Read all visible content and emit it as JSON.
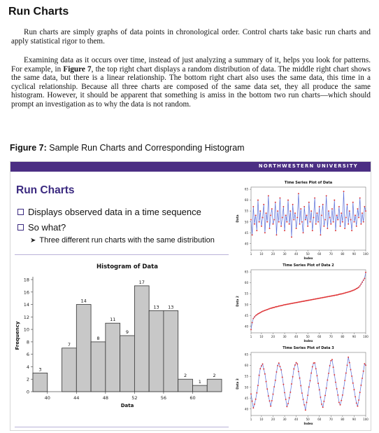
{
  "document": {
    "title": "Run Charts",
    "paragraph1": "Run charts are simply graphs of data points in chronological order. Control charts take basic run charts and apply statistical rigor to them.",
    "paragraph2_before": "Examining data as it occurs over time, instead of just analyzing a summary of it, helps you look for patterns. For example, in ",
    "paragraph2_figref": "Figure 7",
    "paragraph2_after": ", the top right chart displays a random distribution of data. The middle right chart shows the same data, but there is a linear relationship. The bottom right chart also uses the same data, this time in a cyclical relationship. Because all three charts are composed of the same data set, they all produce the same histogram. However, it should be apparent that something is amiss in the bottom two run charts—which should prompt an investigation as to why the data is not random.",
    "figure_caption_bold": "Figure 7:",
    "figure_caption_text": " Sample Run Charts and Corresponding Histogram"
  },
  "slide": {
    "university_label": "NORTHWESTERN UNIVERSITY",
    "title": "Run Charts",
    "bullets": [
      "Displays observed data in a time sequence",
      "So what?"
    ],
    "sub_bullet": "Three different run charts with the same distribution",
    "colors": {
      "band": "#4b2e83",
      "title": "#3b2a80",
      "bars": "#c8c8c8",
      "series_line": "#5b6fd8",
      "series_points": "#e03030"
    }
  },
  "chart_data": [
    {
      "type": "bar",
      "title": "Histogram of Data",
      "xlabel": "Data",
      "ylabel": "Frequency",
      "bin_starts": [
        38,
        40,
        42,
        44,
        46,
        48,
        50,
        52,
        54,
        56,
        58,
        60,
        62
      ],
      "values": [
        3,
        0,
        7,
        14,
        8,
        11,
        9,
        17,
        13,
        13,
        2,
        1,
        2
      ],
      "x_ticks": [
        40,
        44,
        48,
        52,
        56,
        60
      ],
      "y_ticks": [
        0,
        2,
        4,
        6,
        8,
        10,
        12,
        14,
        16,
        18
      ],
      "xlim": [
        38,
        64
      ],
      "ylim": [
        0,
        18
      ]
    },
    {
      "type": "line",
      "title": "Time Series Plot of Data",
      "xlabel": "Index",
      "ylabel": "Data",
      "x_ticks": [
        1,
        10,
        20,
        30,
        40,
        50,
        60,
        70,
        80,
        90,
        100
      ],
      "y_ticks": [
        40,
        45,
        50,
        55,
        60,
        65
      ],
      "xlim": [
        1,
        100
      ],
      "ylim": [
        37,
        66
      ],
      "values": [
        51,
        44,
        57,
        49,
        53,
        46,
        60,
        50,
        55,
        48,
        52,
        58,
        45,
        54,
        50,
        62,
        47,
        53,
        56,
        49,
        51,
        59,
        44,
        55,
        50,
        61,
        48,
        52,
        57,
        46,
        53,
        50,
        60,
        49,
        55,
        43,
        58,
        51,
        54,
        47,
        52,
        63,
        49,
        56,
        50,
        45,
        57,
        51,
        53,
        48,
        59,
        50,
        55,
        46,
        52,
        61,
        49,
        54,
        50,
        57,
        44,
        53,
        58,
        48,
        51,
        62,
        47,
        55,
        52,
        49,
        56,
        50,
        60,
        46,
        53,
        51,
        57,
        48,
        54,
        50,
        64,
        47,
        52,
        58,
        49,
        55,
        51,
        46,
        59,
        50,
        53,
        48,
        56,
        52,
        61,
        49,
        54,
        50,
        57,
        55
      ]
    },
    {
      "type": "line",
      "title": "Time Series Plot of Data 2",
      "xlabel": "Index",
      "ylabel": "Data 2",
      "x_ticks": [
        1,
        10,
        20,
        30,
        40,
        50,
        60,
        70,
        80,
        90,
        100
      ],
      "y_ticks": [
        40,
        45,
        50,
        55,
        60,
        65
      ],
      "xlim": [
        1,
        100
      ],
      "ylim": [
        37,
        66
      ],
      "values": [
        38.5,
        41.7,
        43.6,
        44.3,
        44.9,
        45.3,
        45.7,
        46.0,
        46.3,
        46.6,
        46.9,
        47.1,
        47.3,
        47.5,
        47.7,
        47.9,
        48.1,
        48.3,
        48.4,
        48.6,
        48.7,
        48.9,
        49.0,
        49.1,
        49.3,
        49.4,
        49.5,
        49.6,
        49.8,
        49.9,
        50.0,
        50.1,
        50.2,
        50.3,
        50.4,
        50.5,
        50.6,
        50.7,
        50.8,
        50.9,
        51.0,
        51.1,
        51.2,
        51.3,
        51.4,
        51.5,
        51.6,
        51.7,
        51.8,
        51.9,
        52.0,
        52.1,
        52.2,
        52.3,
        52.4,
        52.5,
        52.6,
        52.7,
        52.8,
        52.9,
        53.0,
        53.1,
        53.2,
        53.3,
        53.4,
        53.5,
        53.6,
        53.7,
        53.8,
        53.9,
        54.0,
        54.1,
        54.2,
        54.3,
        54.4,
        54.5,
        54.7,
        54.8,
        54.9,
        55.0,
        55.2,
        55.3,
        55.5,
        55.6,
        55.8,
        55.9,
        56.1,
        56.3,
        56.5,
        56.7,
        57.0,
        57.3,
        57.6,
        58.0,
        58.6,
        59.4,
        60.3,
        61.2,
        62.0,
        64.8
      ]
    },
    {
      "type": "line",
      "title": "Time Series Plot of Data 3",
      "xlabel": "Index",
      "ylabel": "Data 3",
      "x_ticks": [
        1,
        10,
        20,
        30,
        40,
        50,
        60,
        70,
        80,
        90,
        100
      ],
      "y_ticks": [
        40,
        45,
        50,
        55,
        60,
        65
      ],
      "xlim": [
        1,
        100
      ],
      "ylim": [
        37,
        66
      ],
      "values": [
        46.9,
        43.6,
        40.5,
        42.2,
        44.5,
        47.4,
        50.8,
        55.5,
        58.5,
        59.8,
        60.7,
        58.4,
        56.1,
        52.6,
        49.2,
        46.0,
        43.7,
        41.3,
        43.8,
        46.8,
        50.2,
        53.2,
        57.0,
        59.9,
        61.1,
        59.5,
        58.0,
        54.6,
        51.3,
        47.5,
        44.4,
        41.1,
        42.5,
        45.1,
        47.7,
        51.5,
        54.8,
        58.4,
        60.2,
        61.3,
        60.7,
        57.2,
        54.2,
        50.7,
        47.3,
        44.4,
        41.9,
        39.5,
        43.0,
        46.3,
        50.1,
        53.0,
        56.5,
        59.4,
        61.1,
        61.2,
        58.5,
        55.3,
        51.8,
        48.8,
        45.4,
        42.2,
        40.8,
        43.5,
        46.2,
        49.6,
        53.3,
        56.4,
        59.9,
        62.2,
        62.7,
        59.2,
        55.7,
        52.3,
        49.3,
        46.4,
        43.0,
        41.9,
        43.9,
        46.4,
        49.6,
        53.1,
        56.5,
        60.1,
        63.8,
        61.3,
        58.1,
        55.1,
        51.9,
        48.9,
        45.6,
        42.7,
        41.3,
        44.1,
        47.6,
        50.9,
        54.1,
        57.4,
        60.8,
        60.1
      ]
    }
  ]
}
